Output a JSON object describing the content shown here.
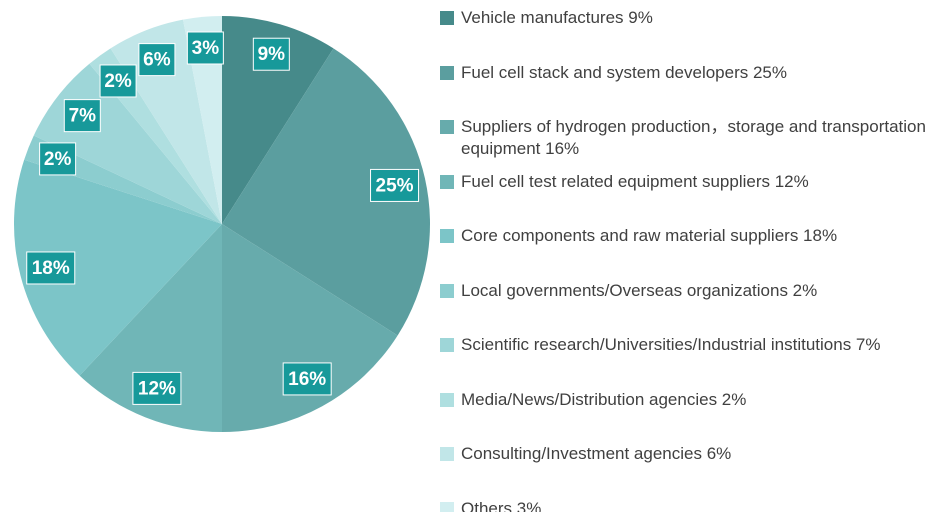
{
  "chart_data": {
    "type": "pie",
    "categories": [
      "Vehicle manufactures 9%",
      "Fuel cell stack and system developers  25%",
      "Suppliers of hydrogen production，storage and transportation equipment 16%",
      "Fuel cell test related equipment suppliers 12%",
      "Core components and raw material suppliers 18%",
      "Local governments/Overseas organizations 2%",
      "Scientific research/Universities/Industrial institutions 7%",
      "Media/News/Distribution agencies 2%",
      "Consulting/Investment agencies 6%",
      "Others 3%"
    ],
    "values": [
      9,
      25,
      16,
      12,
      18,
      2,
      7,
      2,
      6,
      3
    ],
    "value_labels": [
      "9%",
      "25%",
      "16%",
      "12%",
      "18%",
      "2%",
      "7%",
      "2%",
      "6%",
      "3%"
    ],
    "colors": [
      "#468a8a",
      "#5b9e9f",
      "#67abac",
      "#70b6b7",
      "#7cc5c8",
      "#8ccdcf",
      "#9ed6d8",
      "#afdfe0",
      "#c1e6e8",
      "#d2eef0"
    ],
    "label_color": "#17999a"
  }
}
